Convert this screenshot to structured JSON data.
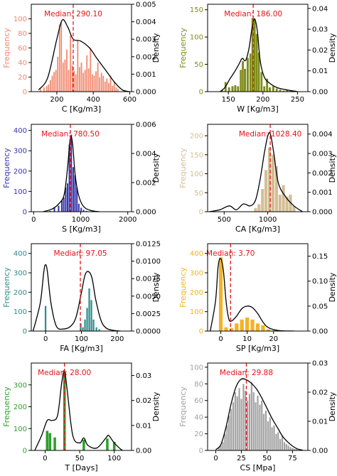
{
  "chart_data": [
    {
      "type": "bar",
      "xlabel": "C [Kg/m3]",
      "ylabel": "Frequency",
      "y2label": "Density",
      "color": "#f4866b",
      "xlim": [
        60,
        610
      ],
      "ylim": [
        0,
        120
      ],
      "y2lim": [
        0,
        0.005
      ],
      "xticks": [
        200,
        400,
        600
      ],
      "yticks": [
        0,
        20,
        40,
        60,
        80,
        100
      ],
      "y2ticks": [
        "0.000",
        "0.001",
        "0.002",
        "0.003",
        "0.004",
        "0.005"
      ],
      "median": 290.1,
      "median_label": "Median: 290.10",
      "x": [
        110,
        130,
        145,
        155,
        165,
        175,
        185,
        195,
        205,
        215,
        225,
        235,
        245,
        255,
        265,
        275,
        285,
        295,
        305,
        315,
        325,
        335,
        345,
        355,
        365,
        375,
        385,
        395,
        405,
        415,
        425,
        435,
        445,
        455,
        465,
        475,
        485,
        495,
        505,
        515,
        525,
        535
      ],
      "values": [
        5,
        6,
        8,
        10,
        16,
        22,
        27,
        30,
        48,
        92,
        95,
        40,
        44,
        58,
        30,
        78,
        36,
        29,
        24,
        70,
        34,
        40,
        26,
        30,
        50,
        32,
        60,
        24,
        22,
        28,
        40,
        20,
        26,
        22,
        14,
        18,
        12,
        22,
        8,
        14,
        6,
        4
      ],
      "bar_width": 8,
      "kde_x": [
        100,
        150,
        200,
        230,
        260,
        290,
        330,
        380,
        420,
        470,
        520,
        560,
        600
      ],
      "kde_y": [
        0.0001,
        0.0008,
        0.003,
        0.0041,
        0.0037,
        0.003,
        0.0029,
        0.0025,
        0.0019,
        0.0012,
        0.0005,
        0.0001,
        0.0
      ]
    },
    {
      "type": "bar",
      "xlabel": "W [Kg/m3]",
      "ylabel": "Frequency",
      "y2label": "Density",
      "color": "#7f8c1a",
      "xlim": [
        120,
        265
      ],
      "ylim": [
        0,
        160
      ],
      "y2lim": [
        0,
        0.042
      ],
      "xticks": [
        150,
        200,
        250
      ],
      "yticks": [
        0,
        50,
        100,
        150
      ],
      "y2ticks": [
        "0.00",
        "0.01",
        "0.02",
        "0.03",
        "0.04"
      ],
      "median": 186.0,
      "median_label": "Median: 186.00",
      "x": [
        141,
        146,
        151,
        156,
        160,
        164,
        168,
        171,
        174,
        178,
        182,
        185,
        188,
        191,
        194,
        198,
        202,
        206,
        210,
        215,
        220,
        225,
        230,
        235,
        240,
        246
      ],
      "values": [
        3,
        18,
        8,
        10,
        12,
        10,
        40,
        56,
        42,
        62,
        70,
        135,
        132,
        106,
        72,
        36,
        10,
        24,
        8,
        10,
        6,
        4,
        2,
        3,
        2,
        2
      ],
      "bar_width": 3.3,
      "kde_x": [
        138,
        145,
        152,
        158,
        165,
        170,
        175,
        180,
        184,
        188,
        192,
        196,
        202,
        210,
        220,
        232,
        250
      ],
      "kde_y": [
        0.0,
        0.002,
        0.006,
        0.009,
        0.013,
        0.016,
        0.015,
        0.021,
        0.03,
        0.035,
        0.029,
        0.015,
        0.007,
        0.004,
        0.002,
        0.001,
        0.0
      ]
    },
    {
      "type": "bar",
      "xlabel": "S [Kg/m3]",
      "ylabel": "Frequency",
      "y2label": "Density",
      "color": "#3535b0",
      "xlim": [
        -50,
        2080
      ],
      "ylim": [
        0,
        430
      ],
      "y2lim": [
        0,
        0.006
      ],
      "xticks": [
        0,
        1000,
        2000
      ],
      "yticks": [
        0,
        100,
        200,
        300,
        400
      ],
      "y2ticks": [
        "0.000",
        "0.002",
        "0.004",
        "0.006"
      ],
      "median": 780.5,
      "median_label": "Median: 780.50",
      "x": [
        350,
        440,
        530,
        600,
        640,
        680,
        720,
        760,
        800,
        840,
        880,
        920,
        960,
        1010,
        1060,
        1120
      ],
      "values": [
        5,
        20,
        30,
        55,
        70,
        120,
        140,
        330,
        380,
        220,
        180,
        120,
        40,
        20,
        10,
        5
      ],
      "bar_width": 36,
      "kde_x": [
        200,
        400,
        550,
        650,
        720,
        760,
        790,
        830,
        880,
        950,
        1050,
        1200,
        1400
      ],
      "kde_y": [
        0.0,
        0.0002,
        0.0006,
        0.0012,
        0.003,
        0.0045,
        0.0052,
        0.0046,
        0.0026,
        0.0012,
        0.0004,
        0.0001,
        0.0
      ]
    },
    {
      "type": "bar",
      "xlabel": "CA [Kg/m3]",
      "ylabel": "Frequency",
      "y2label": "Density",
      "color": "#d4bd94",
      "xlim": [
        310,
        1460
      ],
      "ylim": [
        0,
        230
      ],
      "y2lim": [
        0,
        0.0045
      ],
      "xticks": [
        500,
        1000
      ],
      "yticks": [
        0,
        50,
        100,
        150,
        200
      ],
      "y2ticks": [
        "0.000",
        "0.001",
        "0.002",
        "0.003",
        "0.004"
      ],
      "median": 1028.4,
      "median_label": "Median: 1028.40",
      "x": [
        860,
        900,
        940,
        980,
        1020,
        1060,
        1100,
        1140,
        1180,
        1220,
        1260,
        1300
      ],
      "values": [
        10,
        20,
        60,
        110,
        170,
        150,
        120,
        45,
        70,
        40,
        45,
        15
      ],
      "bar_width": 36,
      "kde_x": [
        330,
        450,
        560,
        640,
        720,
        800,
        860,
        910,
        960,
        1000,
        1030,
        1070,
        1120,
        1200,
        1300,
        1400
      ],
      "kde_y": [
        0.0,
        0.0001,
        0.0003,
        0.0001,
        0.0004,
        0.0003,
        0.0006,
        0.0016,
        0.003,
        0.0039,
        0.004,
        0.003,
        0.0015,
        0.0008,
        0.0003,
        0.0
      ]
    },
    {
      "type": "bar",
      "xlabel": "FA [Kg/m3]",
      "ylabel": "Frequency",
      "y2label": "Density",
      "color": "#2e8b8b",
      "xlim": [
        -40,
        240
      ],
      "ylim": [
        0,
        450
      ],
      "y2lim": [
        0,
        0.0125
      ],
      "xticks": [
        0,
        100,
        200
      ],
      "yticks": [
        0,
        100,
        200,
        300,
        400
      ],
      "y2ticks": [
        "0.0000",
        "0.0025",
        "0.0050",
        "0.0075",
        "0.0100",
        "0.0125"
      ],
      "median": 97.05,
      "median_label": "Median: 97.05",
      "x": [
        0,
        98,
        104,
        110,
        116,
        122,
        128,
        134,
        142,
        150
      ],
      "values": [
        130,
        40,
        20,
        60,
        120,
        220,
        160,
        60,
        20,
        10
      ],
      "bar_width": 5,
      "kde_x": [
        -35,
        -15,
        -5,
        0,
        5,
        15,
        30,
        50,
        70,
        85,
        100,
        110,
        120,
        130,
        140,
        155,
        170,
        190,
        210
      ],
      "kde_y": [
        0.0,
        0.004,
        0.0085,
        0.0095,
        0.0085,
        0.004,
        0.0007,
        0.0003,
        0.0007,
        0.002,
        0.0055,
        0.008,
        0.0085,
        0.0075,
        0.0045,
        0.0015,
        0.0004,
        0.0001,
        0.0
      ]
    },
    {
      "type": "bar",
      "xlabel": "SP [Kg/m3]",
      "ylabel": "Frequency",
      "y2label": "Density",
      "color": "#f4b225",
      "xlim": [
        -5,
        33
      ],
      "ylim": [
        0,
        450
      ],
      "y2lim": [
        0,
        0.175
      ],
      "xticks": [
        0,
        10,
        20
      ],
      "yticks": [
        0,
        100,
        200,
        300,
        400
      ],
      "y2ticks": [
        "0.00",
        "0.05",
        "0.10",
        "0.15"
      ],
      "median": 3.7,
      "median_label": "Median: 3.70",
      "x": [
        0,
        2,
        4,
        6,
        8,
        10,
        12,
        14,
        16,
        18,
        20
      ],
      "values": [
        380,
        20,
        15,
        40,
        60,
        70,
        60,
        40,
        30,
        10,
        5
      ],
      "bar_width": 1.5,
      "kde_x": [
        -4,
        -2,
        -1,
        0,
        1,
        2,
        3,
        4,
        6,
        8,
        10,
        12,
        14,
        16,
        18,
        22,
        28
      ],
      "kde_y": [
        0.0,
        0.06,
        0.13,
        0.145,
        0.12,
        0.06,
        0.025,
        0.02,
        0.03,
        0.045,
        0.05,
        0.047,
        0.035,
        0.018,
        0.007,
        0.001,
        0.0
      ]
    },
    {
      "type": "bar",
      "xlabel": "T [Days]",
      "ylabel": "Frequency",
      "y2label": "Density",
      "color": "#2ca02c",
      "xlim": [
        -20,
        125
      ],
      "ylim": [
        0,
        400
      ],
      "y2lim": [
        0,
        0.035
      ],
      "xticks": [
        0,
        50,
        100
      ],
      "yticks": [
        0,
        100,
        200,
        300
      ],
      "y2ticks": [
        "0.00",
        "0.01",
        "0.02",
        "0.03"
      ],
      "median": 28.0,
      "median_label": "Median: 28.00",
      "x": [
        3,
        7,
        14,
        28,
        56,
        90,
        100
      ],
      "values": [
        90,
        80,
        60,
        360,
        50,
        55,
        40
      ],
      "bar_width": 4,
      "kde_x": [
        -15,
        -5,
        3,
        10,
        18,
        24,
        28,
        32,
        40,
        50,
        56,
        62,
        75,
        88,
        92,
        100,
        112,
        120
      ],
      "kde_y": [
        0.0,
        0.006,
        0.012,
        0.012,
        0.014,
        0.027,
        0.032,
        0.024,
        0.006,
        0.003,
        0.005,
        0.002,
        0.001,
        0.005,
        0.006,
        0.003,
        0.0,
        0.0
      ]
    },
    {
      "type": "bar",
      "xlabel": "CS [Mpa]",
      "ylabel": "Frequency",
      "y2label": "Density",
      "color": "#a0a0a0",
      "xlim": [
        -8,
        90
      ],
      "ylim": [
        0,
        105
      ],
      "y2lim": [
        0,
        0.03
      ],
      "xticks": [
        0,
        25,
        50,
        75
      ],
      "yticks": [
        0,
        20,
        40,
        60,
        80,
        100
      ],
      "y2ticks": [
        "0.00",
        "0.01",
        "0.02",
        "0.03"
      ],
      "median": 29.88,
      "median_label": "Median: 29.88",
      "x": [
        3,
        5,
        7,
        9,
        11,
        13,
        15,
        17,
        19,
        21,
        23,
        25,
        27,
        29,
        31,
        33,
        35,
        37,
        39,
        41,
        43,
        45,
        47,
        49,
        51,
        53,
        55,
        57,
        59,
        61,
        63,
        65,
        67,
        69,
        71,
        73,
        75,
        77,
        79
      ],
      "values": [
        4,
        6,
        10,
        20,
        30,
        42,
        50,
        58,
        70,
        65,
        75,
        62,
        80,
        72,
        60,
        68,
        82,
        70,
        58,
        66,
        55,
        60,
        44,
        48,
        35,
        40,
        28,
        30,
        20,
        22,
        14,
        18,
        10,
        8,
        6,
        4,
        3,
        2,
        2
      ],
      "bar_width": 1.7,
      "kde_x": [
        0,
        5,
        10,
        15,
        20,
        25,
        30,
        35,
        40,
        45,
        50,
        55,
        60,
        65,
        70,
        75,
        80,
        85
      ],
      "kde_y": [
        0.0003,
        0.002,
        0.008,
        0.016,
        0.022,
        0.0245,
        0.0242,
        0.023,
        0.021,
        0.018,
        0.0145,
        0.011,
        0.008,
        0.005,
        0.003,
        0.0015,
        0.0005,
        0.0001
      ]
    }
  ]
}
